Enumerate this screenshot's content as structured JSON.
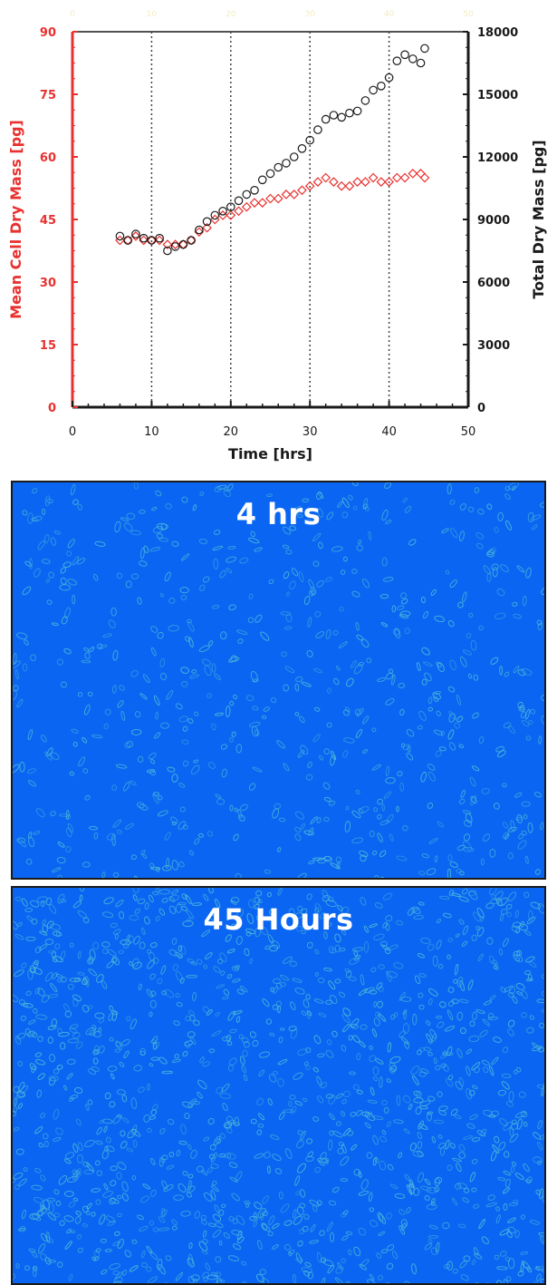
{
  "chart_data": {
    "type": "scatter",
    "xlabel": "Time [hrs]",
    "ylabel": "Mean Cell Dry Mass [pg]",
    "y2label": "Total Dry Mass [pg]",
    "xlim": [
      0,
      50
    ],
    "ylim": [
      0,
      90
    ],
    "y2lim": [
      0,
      18000
    ],
    "x_ticks": [
      0,
      10,
      20,
      30,
      40,
      50
    ],
    "y_ticks": [
      0,
      15,
      30,
      45,
      60,
      75,
      90
    ],
    "y2_ticks": [
      0,
      3000,
      6000,
      9000,
      12000,
      15000,
      18000
    ],
    "top_x_ticks": [
      0,
      10,
      20,
      30,
      40,
      50
    ],
    "vlines": [
      10,
      20,
      30,
      40
    ],
    "grid": false,
    "series": [
      {
        "axis": "left",
        "marker": "diamond",
        "color": "#e8312f",
        "x": [
          6,
          7,
          8,
          9,
          10,
          11,
          12,
          13,
          14,
          15,
          16,
          17,
          18,
          19,
          20,
          21,
          22,
          23,
          24,
          25,
          26,
          27,
          28,
          29,
          30,
          31,
          32,
          33,
          34,
          35,
          36,
          37,
          38,
          39,
          40,
          41,
          42,
          43,
          44,
          44.5
        ],
        "y": [
          40,
          40,
          41,
          40,
          40,
          40,
          39,
          39,
          39,
          40,
          42,
          43,
          45,
          46,
          46,
          47,
          48,
          49,
          49,
          50,
          50,
          51,
          51,
          52,
          53,
          54,
          55,
          54,
          53,
          53,
          54,
          54,
          55,
          54,
          54,
          55,
          55,
          56,
          56,
          55
        ]
      },
      {
        "axis": "right",
        "marker": "circle",
        "color": "#1a1a1a",
        "x": [
          6,
          7,
          8,
          9,
          10,
          11,
          12,
          13,
          14,
          15,
          16,
          17,
          18,
          19,
          20,
          21,
          22,
          23,
          24,
          25,
          26,
          27,
          28,
          29,
          30,
          31,
          32,
          33,
          34,
          35,
          36,
          37,
          38,
          39,
          40,
          41,
          42,
          43,
          44,
          44.5
        ],
        "y": [
          8200,
          8000,
          8300,
          8100,
          8000,
          8100,
          7500,
          7700,
          7800,
          8000,
          8500,
          8900,
          9200,
          9400,
          9600,
          9900,
          10200,
          10400,
          10900,
          11200,
          11500,
          11700,
          12000,
          12400,
          12800,
          13300,
          13800,
          14000,
          13900,
          14100,
          14200,
          14700,
          15200,
          15400,
          15800,
          16600,
          16900,
          16700,
          16500,
          17200
        ]
      }
    ],
    "colors": {
      "left_axis": "#e8312f",
      "right_axis": "#1a1a1a",
      "vlines": "#444444"
    }
  },
  "panels": {
    "top_label": "4 hrs",
    "bottom_label": "45 Hours",
    "background_color": "#0a66f2",
    "cell_color": "#4fb4d8"
  }
}
